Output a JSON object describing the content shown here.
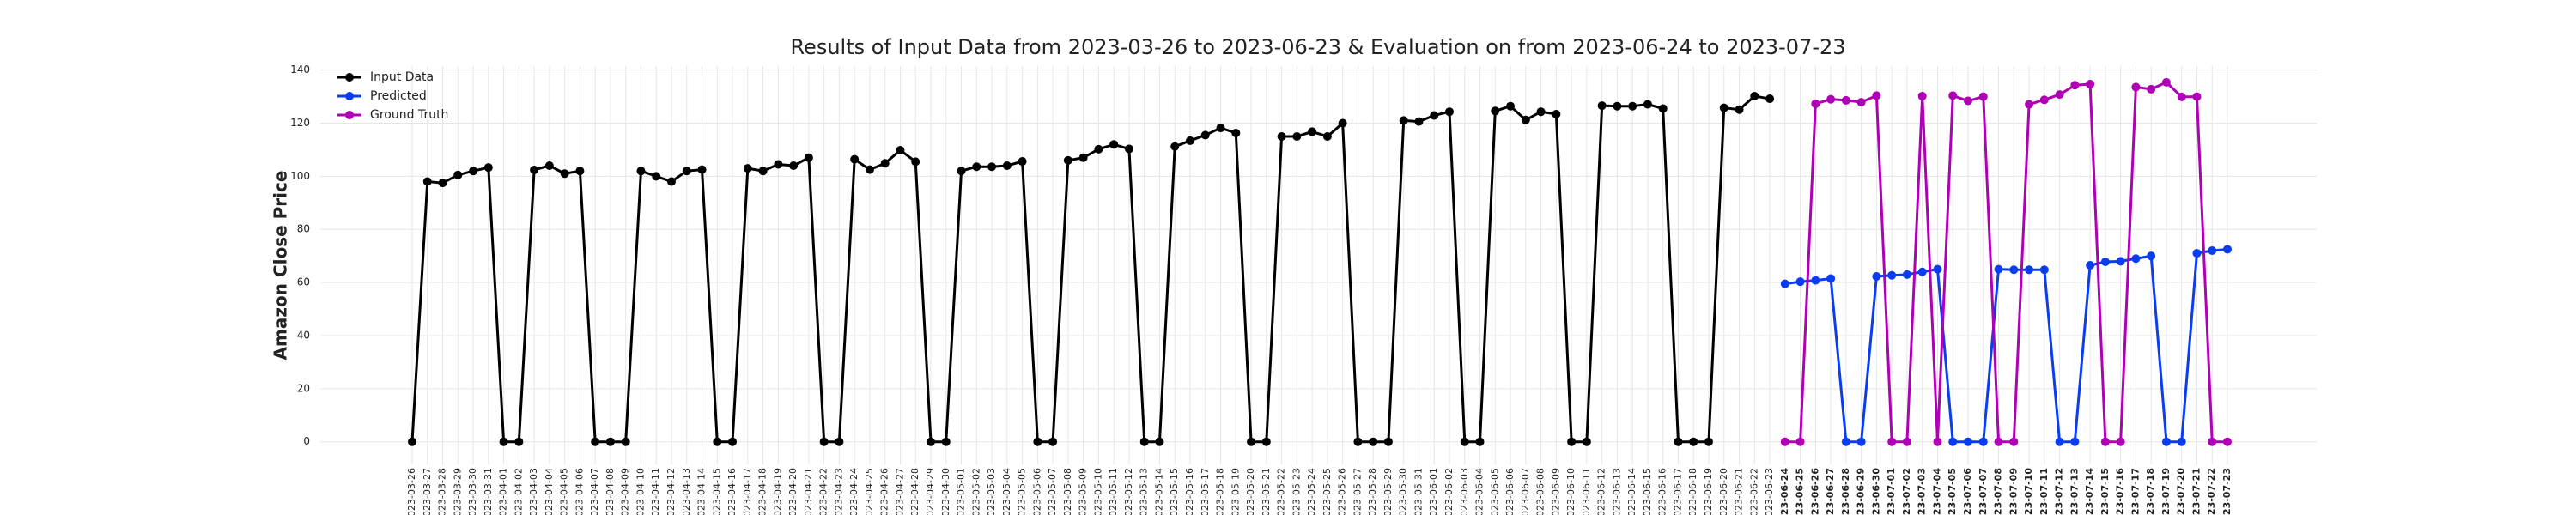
{
  "chart_data": {
    "type": "line",
    "title": "Results of Input Data from 2023-03-26 to 2023-06-23 & Evaluation on from 2023-06-24 to 2023-07-23",
    "ylabel": "Amazon Close Price",
    "categories": [
      "2023-03-26",
      "2023-03-27",
      "2023-03-28",
      "2023-03-29",
      "2023-03-30",
      "2023-03-31",
      "2023-04-01",
      "2023-04-02",
      "2023-04-03",
      "2023-04-04",
      "2023-04-05",
      "2023-04-06",
      "2023-04-07",
      "2023-04-08",
      "2023-04-09",
      "2023-04-10",
      "2023-04-11",
      "2023-04-12",
      "2023-04-13",
      "2023-04-14",
      "2023-04-15",
      "2023-04-16",
      "2023-04-17",
      "2023-04-18",
      "2023-04-19",
      "2023-04-20",
      "2023-04-21",
      "2023-04-22",
      "2023-04-23",
      "2023-04-24",
      "2023-04-25",
      "2023-04-26",
      "2023-04-27",
      "2023-04-28",
      "2023-04-29",
      "2023-04-30",
      "2023-05-01",
      "2023-05-02",
      "2023-05-03",
      "2023-05-04",
      "2023-05-05",
      "2023-05-06",
      "2023-05-07",
      "2023-05-08",
      "2023-05-09",
      "2023-05-10",
      "2023-05-11",
      "2023-05-12",
      "2023-05-13",
      "2023-05-14",
      "2023-05-15",
      "2023-05-16",
      "2023-05-17",
      "2023-05-18",
      "2023-05-19",
      "2023-05-20",
      "2023-05-21",
      "2023-05-22",
      "2023-05-23",
      "2023-05-24",
      "2023-05-25",
      "2023-05-26",
      "2023-05-27",
      "2023-05-28",
      "2023-05-29",
      "2023-05-30",
      "2023-05-31",
      "2023-06-01",
      "2023-06-02",
      "2023-06-03",
      "2023-06-04",
      "2023-06-05",
      "2023-06-06",
      "2023-06-07",
      "2023-06-08",
      "2023-06-09",
      "2023-06-10",
      "2023-06-11",
      "2023-06-12",
      "2023-06-13",
      "2023-06-14",
      "2023-06-15",
      "2023-06-16",
      "2023-06-17",
      "2023-06-18",
      "2023-06-19",
      "2023-06-20",
      "2023-06-21",
      "2023-06-22",
      "2023-06-23",
      "2023-06-24",
      "2023-06-25",
      "2023-06-26",
      "2023-06-27",
      "2023-06-28",
      "2023-06-29",
      "2023-06-30",
      "2023-07-01",
      "2023-07-02",
      "2023-07-03",
      "2023-07-04",
      "2023-07-05",
      "2023-07-06",
      "2023-07-07",
      "2023-07-08",
      "2023-07-09",
      "2023-07-10",
      "2023-07-11",
      "2023-07-12",
      "2023-07-13",
      "2023-07-14",
      "2023-07-15",
      "2023-07-16",
      "2023-07-17",
      "2023-07-18",
      "2023-07-19",
      "2023-07-20",
      "2023-07-21",
      "2023-07-22",
      "2023-07-23"
    ],
    "series": [
      {
        "name": "Input Data",
        "color": "#000000",
        "values": [
          0,
          98,
          97.5,
          100.5,
          102,
          103.3,
          0,
          0,
          102.4,
          104,
          101,
          102,
          0,
          0,
          0,
          102,
          100,
          98,
          102,
          102.5,
          0,
          0,
          103,
          102,
          104.5,
          104,
          107,
          0,
          0,
          106.4,
          102.5,
          104.9,
          109.8,
          105.5,
          0,
          0,
          102,
          103.6,
          103.6,
          104,
          105.6,
          0,
          0,
          106,
          107,
          110.2,
          112,
          110.3,
          0,
          0,
          111.2,
          113.4,
          115.5,
          118.2,
          116.3,
          0,
          0,
          115,
          115,
          116.8,
          115,
          120,
          0,
          0,
          0,
          121,
          120.6,
          122.9,
          124.3,
          0,
          0,
          124.6,
          126.4,
          121.2,
          124.3,
          123.4,
          0,
          0,
          126.6,
          126.4,
          126.4,
          127.1,
          125.5,
          0,
          0,
          0,
          125.8,
          125.1,
          130.2,
          129.2,
          null,
          null,
          null,
          null,
          null,
          null,
          null,
          null,
          null,
          null,
          null,
          null,
          null,
          null,
          null,
          null,
          null,
          null,
          null,
          null,
          null,
          null,
          null,
          null,
          null,
          null,
          null,
          null,
          null,
          null
        ]
      },
      {
        "name": "Predicted",
        "color": "#0a3cf0",
        "values": [
          null,
          null,
          null,
          null,
          null,
          null,
          null,
          null,
          null,
          null,
          null,
          null,
          null,
          null,
          null,
          null,
          null,
          null,
          null,
          null,
          null,
          null,
          null,
          null,
          null,
          null,
          null,
          null,
          null,
          null,
          null,
          null,
          null,
          null,
          null,
          null,
          null,
          null,
          null,
          null,
          null,
          null,
          null,
          null,
          null,
          null,
          null,
          null,
          null,
          null,
          null,
          null,
          null,
          null,
          null,
          null,
          null,
          null,
          null,
          null,
          null,
          null,
          null,
          null,
          null,
          null,
          null,
          null,
          null,
          null,
          null,
          null,
          null,
          null,
          null,
          null,
          null,
          null,
          null,
          null,
          null,
          null,
          null,
          null,
          null,
          null,
          null,
          null,
          null,
          null,
          59.5,
          60.3,
          60.8,
          61.5,
          0,
          0,
          62.3,
          62.7,
          63,
          64,
          65,
          0,
          0,
          0,
          65,
          64.8,
          64.8,
          64.8,
          0,
          0,
          66.5,
          67.8,
          68,
          69,
          70,
          0,
          0,
          71,
          72,
          72.5
        ]
      },
      {
        "name": "Ground Truth",
        "color": "#b000b5",
        "values": [
          null,
          null,
          null,
          null,
          null,
          null,
          null,
          null,
          null,
          null,
          null,
          null,
          null,
          null,
          null,
          null,
          null,
          null,
          null,
          null,
          null,
          null,
          null,
          null,
          null,
          null,
          null,
          null,
          null,
          null,
          null,
          null,
          null,
          null,
          null,
          null,
          null,
          null,
          null,
          null,
          null,
          null,
          null,
          null,
          null,
          null,
          null,
          null,
          null,
          null,
          null,
          null,
          null,
          null,
          null,
          null,
          null,
          null,
          null,
          null,
          null,
          null,
          null,
          null,
          null,
          null,
          null,
          null,
          null,
          null,
          null,
          null,
          null,
          null,
          null,
          null,
          null,
          null,
          null,
          null,
          null,
          null,
          null,
          null,
          null,
          null,
          null,
          null,
          null,
          null,
          0,
          0,
          127.3,
          129,
          128.6,
          127.9,
          130.4,
          0,
          0,
          130.2,
          0,
          130.4,
          128.4,
          130,
          0,
          0,
          127.1,
          128.8,
          130.8,
          134.3,
          134.7,
          0,
          0,
          133.6,
          132.8,
          135.4,
          129.9,
          130,
          0,
          0
        ]
      }
    ],
    "ylim": [
      -8.5,
      141.5
    ],
    "yticks": [
      0,
      20,
      40,
      60,
      80,
      100,
      120,
      140
    ],
    "grid": true,
    "legend": "upper left"
  }
}
